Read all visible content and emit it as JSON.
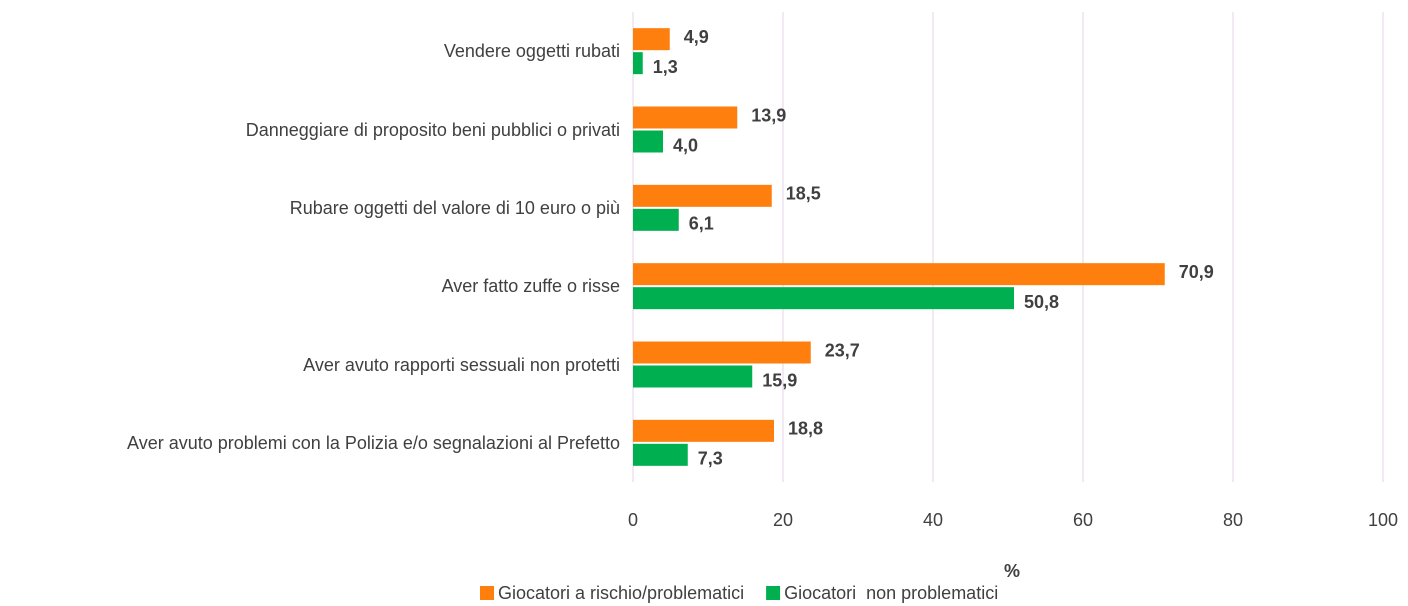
{
  "chart_data": {
    "type": "bar",
    "orientation": "horizontal",
    "categories": [
      "Vendere oggetti rubati",
      "Danneggiare di proposito beni pubblici o privati",
      "Rubare oggetti del valore di 10 euro o più",
      "Aver fatto zuffe o risse",
      "Aver avuto rapporti sessuali non protetti",
      "Aver avuto problemi con la Polizia e/o segnalazioni al Prefetto"
    ],
    "series": [
      {
        "name": "Giocatori a rischio/problematici",
        "color": "#ff7f0e",
        "values": [
          4.9,
          13.9,
          18.5,
          70.9,
          23.7,
          18.8
        ],
        "value_labels": [
          "4,9",
          "13,9",
          "18,5",
          "70,9",
          "23,7",
          "18,8"
        ]
      },
      {
        "name": "Giocatori  non problematici",
        "color": "#00b050",
        "values": [
          1.3,
          4.0,
          6.1,
          50.8,
          15.9,
          7.3
        ],
        "value_labels": [
          "1,3",
          "4,0",
          "6,1",
          "50,8",
          "15,9",
          "7,3"
        ]
      }
    ],
    "xlabel": "%",
    "xlim": [
      0,
      100
    ],
    "xticks": [
      0,
      20,
      40,
      60,
      80,
      100
    ],
    "grid": true,
    "legend": "bottom"
  }
}
